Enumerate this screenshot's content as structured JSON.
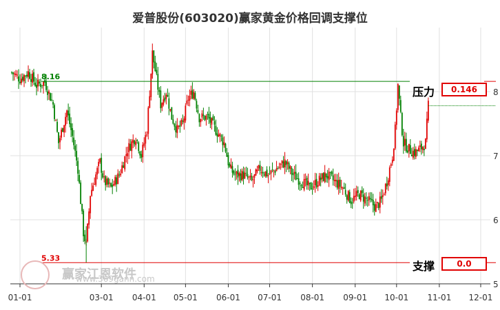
{
  "title": "爱普股份(603020)赢家黄金价格回调支撑位",
  "pressure": {
    "label": "压力",
    "value": "0.146",
    "price_label": "8.16",
    "price": 8.16
  },
  "support": {
    "label": "支撑",
    "value": "0.0",
    "price_label": "5.33",
    "price": 5.33
  },
  "watermark": {
    "text": "赢家江恩软件",
    "url": "www.369gann.com"
  },
  "colors": {
    "up": "#e00000",
    "down": "#008000",
    "pressure_line": "#008000",
    "support_line": "#e00000",
    "grid": "#e0e0e0"
  },
  "chart_data": {
    "type": "candlestick",
    "ylim": [
      5.0,
      9.0
    ],
    "yticks": [
      {
        "value": 5,
        "label": "5"
      },
      {
        "value": 6,
        "label": "6"
      },
      {
        "value": 7,
        "label": "7"
      },
      {
        "value": 8,
        "label": "8"
      }
    ],
    "xticks": [
      {
        "value": 0,
        "label": "01-01"
      },
      {
        "value": 59,
        "label": "03-01"
      },
      {
        "value": 90,
        "label": "04-01"
      },
      {
        "value": 120,
        "label": "05-01"
      },
      {
        "value": 151,
        "label": "06-01"
      },
      {
        "value": 181,
        "label": "07-01"
      },
      {
        "value": 212,
        "label": "08-01"
      },
      {
        "value": 243,
        "label": "09-01"
      },
      {
        "value": 273,
        "label": "10-01"
      },
      {
        "value": 304,
        "label": "11-01"
      },
      {
        "value": 334,
        "label": "12-01"
      }
    ],
    "xlim": [
      -7,
      341
    ],
    "last_close": 7.78,
    "series": [
      {
        "x": -6,
        "c": 8.3
      },
      {
        "x": 0,
        "c": 8.2
      },
      {
        "x": 6,
        "c": 8.3
      },
      {
        "x": 12,
        "c": 8.1
      },
      {
        "x": 18,
        "c": 8.15
      },
      {
        "x": 24,
        "c": 7.8
      },
      {
        "x": 28,
        "c": 7.2
      },
      {
        "x": 34,
        "c": 7.7
      },
      {
        "x": 38,
        "c": 7.3
      },
      {
        "x": 42,
        "c": 6.8
      },
      {
        "x": 44,
        "c": 6.3
      },
      {
        "x": 46,
        "c": 5.8
      },
      {
        "x": 48,
        "c": 5.6
      },
      {
        "x": 51,
        "c": 6.4
      },
      {
        "x": 55,
        "c": 6.7
      },
      {
        "x": 58,
        "c": 6.9
      },
      {
        "x": 61,
        "c": 6.6
      },
      {
        "x": 66,
        "c": 6.5
      },
      {
        "x": 72,
        "c": 6.7
      },
      {
        "x": 78,
        "c": 7.1
      },
      {
        "x": 84,
        "c": 7.3
      },
      {
        "x": 88,
        "c": 7.0
      },
      {
        "x": 92,
        "c": 7.4
      },
      {
        "x": 94,
        "c": 8.0
      },
      {
        "x": 96,
        "c": 8.6
      },
      {
        "x": 99,
        "c": 8.2
      },
      {
        "x": 102,
        "c": 7.8
      },
      {
        "x": 106,
        "c": 8.0
      },
      {
        "x": 110,
        "c": 7.6
      },
      {
        "x": 114,
        "c": 7.4
      },
      {
        "x": 118,
        "c": 7.5
      },
      {
        "x": 122,
        "c": 7.9
      },
      {
        "x": 126,
        "c": 8.0
      },
      {
        "x": 130,
        "c": 7.6
      },
      {
        "x": 136,
        "c": 7.6
      },
      {
        "x": 142,
        "c": 7.4
      },
      {
        "x": 148,
        "c": 7.2
      },
      {
        "x": 152,
        "c": 6.8
      },
      {
        "x": 156,
        "c": 6.7
      },
      {
        "x": 162,
        "c": 6.7
      },
      {
        "x": 168,
        "c": 6.6
      },
      {
        "x": 174,
        "c": 6.8
      },
      {
        "x": 180,
        "c": 6.7
      },
      {
        "x": 186,
        "c": 6.8
      },
      {
        "x": 192,
        "c": 6.9
      },
      {
        "x": 198,
        "c": 6.7
      },
      {
        "x": 204,
        "c": 6.6
      },
      {
        "x": 210,
        "c": 6.5
      },
      {
        "x": 216,
        "c": 6.6
      },
      {
        "x": 222,
        "c": 6.7
      },
      {
        "x": 228,
        "c": 6.6
      },
      {
        "x": 234,
        "c": 6.5
      },
      {
        "x": 240,
        "c": 6.3
      },
      {
        "x": 246,
        "c": 6.4
      },
      {
        "x": 252,
        "c": 6.3
      },
      {
        "x": 258,
        "c": 6.2
      },
      {
        "x": 262,
        "c": 6.3
      },
      {
        "x": 266,
        "c": 6.6
      },
      {
        "x": 270,
        "c": 7.0
      },
      {
        "x": 272,
        "c": 7.4
      },
      {
        "x": 274,
        "c": 8.1
      },
      {
        "x": 276,
        "c": 7.6
      },
      {
        "x": 278,
        "c": 7.2
      },
      {
        "x": 282,
        "c": 7.1
      },
      {
        "x": 286,
        "c": 7.05
      },
      {
        "x": 290,
        "c": 7.1
      },
      {
        "x": 294,
        "c": 7.2
      },
      {
        "x": 296,
        "c": 7.78
      }
    ]
  }
}
